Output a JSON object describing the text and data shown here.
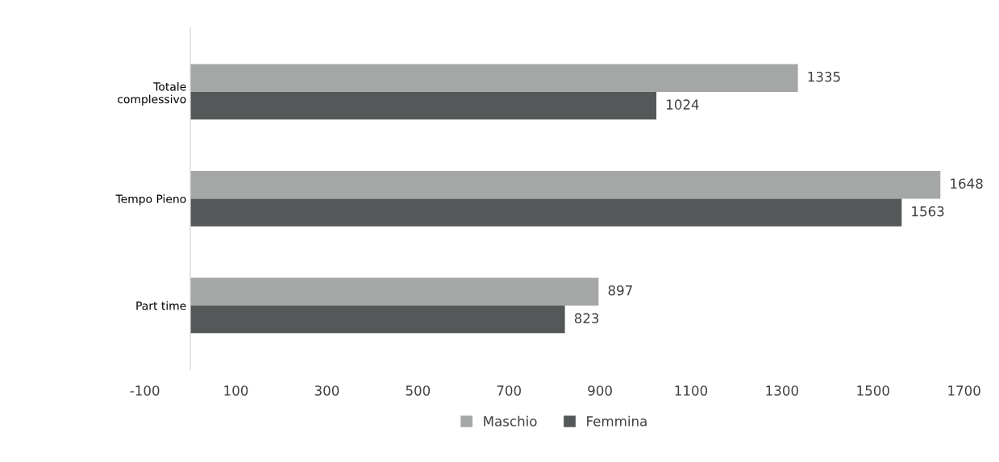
{
  "chart_data": {
    "type": "bar",
    "orientation": "horizontal",
    "categories": [
      "Totale\ncomplessivo",
      "Tempo Pieno",
      "Part time"
    ],
    "series": [
      {
        "name": "Maschio",
        "color": "#a5a7a7",
        "values": [
          1335,
          1648,
          897
        ]
      },
      {
        "name": "Femmina",
        "color": "#545859",
        "values": [
          1024,
          1563,
          823
        ]
      }
    ],
    "xlim": [
      -100,
      1700
    ],
    "xticks": [
      -100,
      100,
      300,
      500,
      700,
      900,
      1100,
      1300,
      1500,
      1700
    ],
    "data_labels": true,
    "grid": false,
    "legend": "bottom"
  }
}
